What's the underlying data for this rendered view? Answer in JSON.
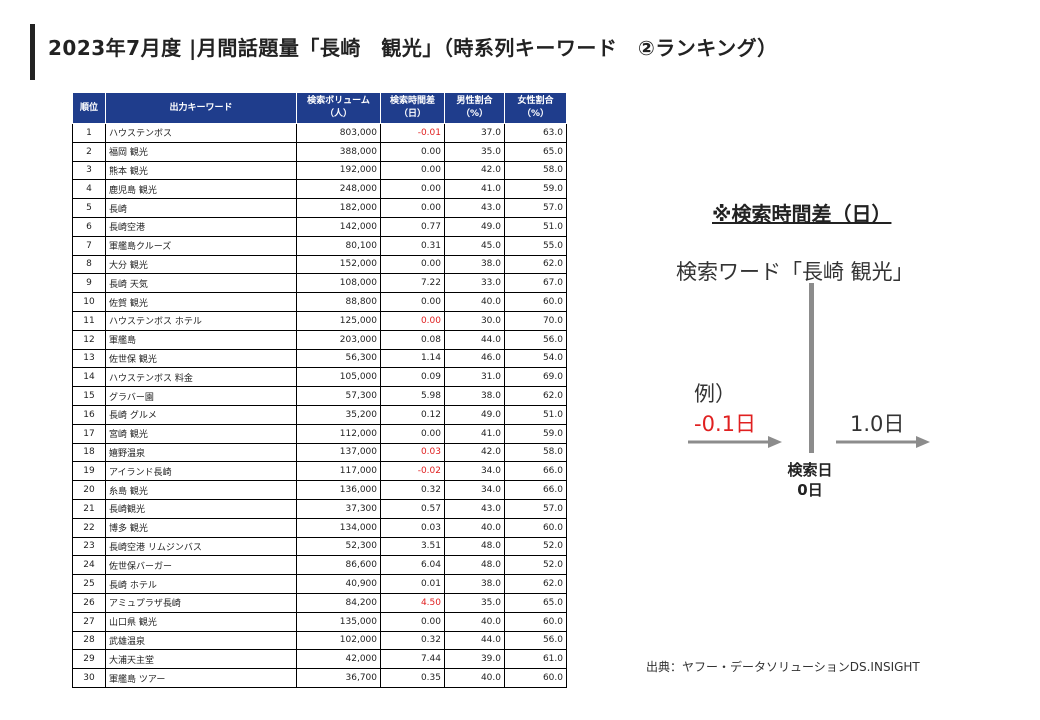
{
  "title": "2023年7月度 |月間話題量「長崎　観光」（時系列キーワード　②ランキング）",
  "table": {
    "headers": [
      "順位",
      "出力キーワード",
      "検索ボリューム\n（人）",
      "検索時間差\n（日）",
      "男性割合\n（%）",
      "女性割合\n（%）"
    ],
    "rows": [
      [
        "1",
        "ハウステンボス",
        "803,000",
        "-0.01",
        "37.0",
        "63.0"
      ],
      [
        "2",
        "福岡 観光",
        "388,000",
        "0.00",
        "35.0",
        "65.0"
      ],
      [
        "3",
        "熊本 観光",
        "192,000",
        "0.00",
        "42.0",
        "58.0"
      ],
      [
        "4",
        "鹿児島 観光",
        "248,000",
        "0.00",
        "41.0",
        "59.0"
      ],
      [
        "5",
        "長崎",
        "182,000",
        "0.00",
        "43.0",
        "57.0"
      ],
      [
        "6",
        "長崎空港",
        "142,000",
        "0.77",
        "49.0",
        "51.0"
      ],
      [
        "7",
        "軍艦島クルーズ",
        "80,100",
        "0.31",
        "45.0",
        "55.0"
      ],
      [
        "8",
        "大分 観光",
        "152,000",
        "0.00",
        "38.0",
        "62.0"
      ],
      [
        "9",
        "長崎 天気",
        "108,000",
        "7.22",
        "33.0",
        "67.0"
      ],
      [
        "10",
        "佐賀 観光",
        "88,800",
        "0.00",
        "40.0",
        "60.0"
      ],
      [
        "11",
        "ハウステンボス ホテル",
        "125,000",
        "0.00",
        "30.0",
        "70.0"
      ],
      [
        "12",
        "軍艦島",
        "203,000",
        "0.08",
        "44.0",
        "56.0"
      ],
      [
        "13",
        "佐世保 観光",
        "56,300",
        "1.14",
        "46.0",
        "54.0"
      ],
      [
        "14",
        "ハウステンボス 料金",
        "105,000",
        "0.09",
        "31.0",
        "69.0"
      ],
      [
        "15",
        "グラバー園",
        "57,300",
        "5.98",
        "38.0",
        "62.0"
      ],
      [
        "16",
        "長崎 グルメ",
        "35,200",
        "0.12",
        "49.0",
        "51.0"
      ],
      [
        "17",
        "宮崎 観光",
        "112,000",
        "0.00",
        "41.0",
        "59.0"
      ],
      [
        "18",
        "嬉野温泉",
        "137,000",
        "0.03",
        "42.0",
        "58.0"
      ],
      [
        "19",
        "アイランド長崎",
        "117,000",
        "-0.02",
        "34.0",
        "66.0"
      ],
      [
        "20",
        "糸島 観光",
        "136,000",
        "0.32",
        "34.0",
        "66.0"
      ],
      [
        "21",
        "長崎観光",
        "37,300",
        "0.57",
        "43.0",
        "57.0"
      ],
      [
        "22",
        "博多 観光",
        "134,000",
        "0.03",
        "40.0",
        "60.0"
      ],
      [
        "23",
        "長崎空港 リムジンバス",
        "52,300",
        "3.51",
        "48.0",
        "52.0"
      ],
      [
        "24",
        "佐世保バーガー",
        "86,600",
        "6.04",
        "48.0",
        "52.0"
      ],
      [
        "25",
        "長崎 ホテル",
        "40,900",
        "0.01",
        "38.0",
        "62.0"
      ],
      [
        "26",
        "アミュプラザ長崎",
        "84,200",
        "4.50",
        "35.0",
        "65.0"
      ],
      [
        "27",
        "山口県 観光",
        "135,000",
        "0.00",
        "40.0",
        "60.0"
      ],
      [
        "28",
        "武雄温泉",
        "102,000",
        "0.32",
        "44.0",
        "56.0"
      ],
      [
        "29",
        "大浦天主堂",
        "42,000",
        "7.44",
        "39.0",
        "61.0"
      ],
      [
        "30",
        "軍艦島 ツアー",
        "36,700",
        "0.35",
        "40.0",
        "60.0"
      ]
    ],
    "red_time_diff_rows": [
      1,
      11,
      18,
      19,
      26
    ]
  },
  "diagram": {
    "title": "※検索時間差（日）",
    "keyword_label": "検索ワード「長崎 観光」",
    "example_label": "例）",
    "negative_label": "-0.1日",
    "positive_label": "1.0日",
    "search_day_label": "検索日",
    "zero_day_label": "0日"
  },
  "source": "出典：ヤフー・データソリューションDS.INSIGHT",
  "colors": {
    "header_bg": "#1f3d8c",
    "negative": "#e02020",
    "line": "#8c8c8c"
  }
}
